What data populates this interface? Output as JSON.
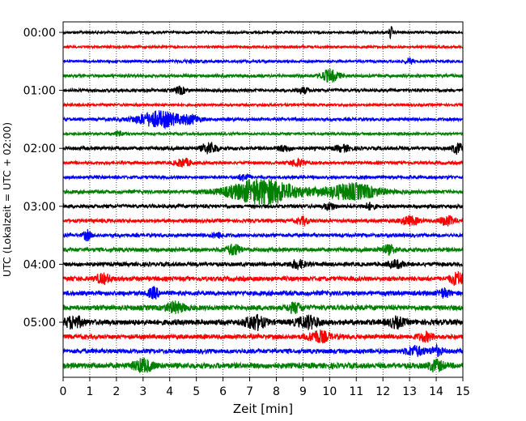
{
  "chart_data": {
    "type": "line",
    "xlabel": "Zeit  [min]",
    "ylabel": "UTC (Lokalzeit = UTC + 02:00)",
    "xlim": [
      0,
      15
    ],
    "x_ticks": [
      0,
      1,
      2,
      3,
      4,
      5,
      6,
      7,
      8,
      9,
      10,
      11,
      12,
      13,
      14,
      15
    ],
    "y_ticks": [
      "00:00",
      "01:00",
      "02:00",
      "03:00",
      "04:00",
      "05:00"
    ],
    "grid": "vertical dotted lines at each minute",
    "colors": [
      "#000000",
      "#ff0000",
      "#0000ff",
      "#008000"
    ],
    "series": [
      {
        "start": "00:00",
        "color": "#000000",
        "base_amplitude": 0.25,
        "events": [
          {
            "t": 12.3,
            "amp": 1.2,
            "dur": 0.1
          }
        ]
      },
      {
        "start": "00:15",
        "color": "#ff0000",
        "base_amplitude": 0.22,
        "events": []
      },
      {
        "start": "00:30",
        "color": "#0000ff",
        "base_amplitude": 0.25,
        "events": [
          {
            "t": 4.9,
            "amp": 0.15,
            "dur": 0.8
          },
          {
            "t": 13.0,
            "amp": 0.6,
            "dur": 0.2
          }
        ]
      },
      {
        "start": "00:45",
        "color": "#008000",
        "base_amplitude": 0.3,
        "events": [
          {
            "t": 10.0,
            "amp": 1.2,
            "dur": 0.5
          }
        ]
      },
      {
        "start": "01:00",
        "color": "#000000",
        "base_amplitude": 0.3,
        "events": [
          {
            "t": 4.4,
            "amp": 0.7,
            "dur": 0.3
          },
          {
            "t": 9.0,
            "amp": 0.6,
            "dur": 0.3
          }
        ]
      },
      {
        "start": "01:15",
        "color": "#ff0000",
        "base_amplitude": 0.25,
        "events": []
      },
      {
        "start": "01:30",
        "color": "#0000ff",
        "base_amplitude": 0.3,
        "events": [
          {
            "t": 3.6,
            "amp": 1.6,
            "dur": 1.2
          },
          {
            "t": 4.8,
            "amp": 0.7,
            "dur": 0.5
          }
        ]
      },
      {
        "start": "01:45",
        "color": "#008000",
        "base_amplitude": 0.25,
        "events": [
          {
            "t": 2.1,
            "amp": 0.6,
            "dur": 0.2
          }
        ]
      },
      {
        "start": "02:00",
        "color": "#000000",
        "base_amplitude": 0.35,
        "events": [
          {
            "t": 5.5,
            "amp": 1.1,
            "dur": 0.4
          },
          {
            "t": 8.3,
            "amp": 0.6,
            "dur": 0.3
          },
          {
            "t": 10.5,
            "amp": 0.6,
            "dur": 0.4
          },
          {
            "t": 14.8,
            "amp": 1.0,
            "dur": 0.3
          }
        ]
      },
      {
        "start": "02:15",
        "color": "#ff0000",
        "base_amplitude": 0.3,
        "events": [
          {
            "t": 4.5,
            "amp": 0.8,
            "dur": 0.4
          },
          {
            "t": 8.8,
            "amp": 0.7,
            "dur": 0.4
          }
        ]
      },
      {
        "start": "02:30",
        "color": "#0000ff",
        "base_amplitude": 0.3,
        "events": [
          {
            "t": 6.8,
            "amp": 0.7,
            "dur": 0.3
          }
        ]
      },
      {
        "start": "02:45",
        "color": "#008000",
        "base_amplitude": 0.35,
        "events": [
          {
            "t": 7.5,
            "amp": 2.6,
            "dur": 1.8
          },
          {
            "t": 10.8,
            "amp": 1.6,
            "dur": 1.5
          }
        ]
      },
      {
        "start": "03:00",
        "color": "#000000",
        "base_amplitude": 0.35,
        "events": [
          {
            "t": 10.0,
            "amp": 0.7,
            "dur": 0.3
          },
          {
            "t": 11.5,
            "amp": 0.6,
            "dur": 0.3
          }
        ]
      },
      {
        "start": "03:15",
        "color": "#ff0000",
        "base_amplitude": 0.35,
        "events": [
          {
            "t": 9.0,
            "amp": 0.7,
            "dur": 0.3
          },
          {
            "t": 13.0,
            "amp": 0.8,
            "dur": 0.5
          },
          {
            "t": 14.4,
            "amp": 0.9,
            "dur": 0.4
          }
        ]
      },
      {
        "start": "03:30",
        "color": "#0000ff",
        "base_amplitude": 0.35,
        "events": [
          {
            "t": 0.9,
            "amp": 1.0,
            "dur": 0.2
          },
          {
            "t": 5.8,
            "amp": 0.5,
            "dur": 0.3
          }
        ]
      },
      {
        "start": "03:45",
        "color": "#008000",
        "base_amplitude": 0.4,
        "events": [
          {
            "t": 6.4,
            "amp": 1.0,
            "dur": 0.4
          },
          {
            "t": 12.2,
            "amp": 0.8,
            "dur": 0.4
          }
        ]
      },
      {
        "start": "04:00",
        "color": "#000000",
        "base_amplitude": 0.4,
        "events": [
          {
            "t": 8.8,
            "amp": 0.8,
            "dur": 0.4
          },
          {
            "t": 12.5,
            "amp": 0.7,
            "dur": 0.4
          }
        ]
      },
      {
        "start": "04:15",
        "color": "#ff0000",
        "base_amplitude": 0.45,
        "events": [
          {
            "t": 1.5,
            "amp": 0.9,
            "dur": 0.4
          },
          {
            "t": 14.8,
            "amp": 1.2,
            "dur": 0.4
          }
        ]
      },
      {
        "start": "04:30",
        "color": "#0000ff",
        "base_amplitude": 0.45,
        "events": [
          {
            "t": 3.4,
            "amp": 1.0,
            "dur": 0.3
          },
          {
            "t": 14.3,
            "amp": 0.8,
            "dur": 0.3
          }
        ]
      },
      {
        "start": "04:45",
        "color": "#008000",
        "base_amplitude": 0.5,
        "events": [
          {
            "t": 4.2,
            "amp": 1.0,
            "dur": 0.5
          },
          {
            "t": 8.7,
            "amp": 0.9,
            "dur": 0.4
          }
        ]
      },
      {
        "start": "05:00",
        "color": "#000000",
        "base_amplitude": 0.55,
        "events": [
          {
            "t": 0.4,
            "amp": 1.1,
            "dur": 0.5
          },
          {
            "t": 7.2,
            "amp": 1.4,
            "dur": 0.5
          },
          {
            "t": 9.2,
            "amp": 1.1,
            "dur": 0.6
          },
          {
            "t": 12.5,
            "amp": 0.9,
            "dur": 0.4
          }
        ]
      },
      {
        "start": "05:15",
        "color": "#ff0000",
        "base_amplitude": 0.45,
        "events": [
          {
            "t": 9.6,
            "amp": 1.1,
            "dur": 0.6
          },
          {
            "t": 13.6,
            "amp": 0.8,
            "dur": 0.4
          }
        ]
      },
      {
        "start": "05:30",
        "color": "#0000ff",
        "base_amplitude": 0.45,
        "events": [
          {
            "t": 13.2,
            "amp": 0.9,
            "dur": 0.5
          },
          {
            "t": 14.0,
            "amp": 0.9,
            "dur": 0.3
          }
        ]
      },
      {
        "start": "05:45",
        "color": "#008000",
        "base_amplitude": 0.55,
        "events": [
          {
            "t": 3.0,
            "amp": 1.2,
            "dur": 0.5
          },
          {
            "t": 14.0,
            "amp": 1.0,
            "dur": 0.4
          }
        ]
      }
    ]
  }
}
